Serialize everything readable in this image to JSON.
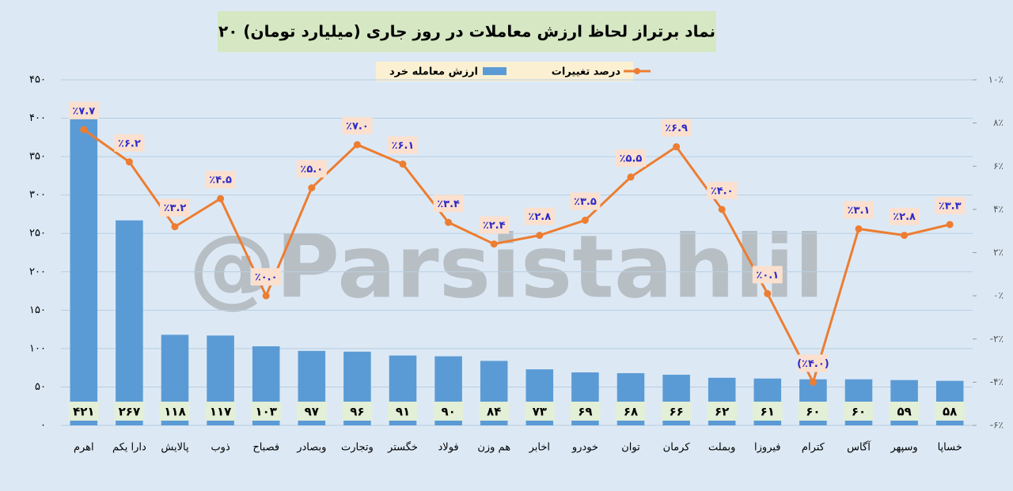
{
  "chart_data": {
    "type": "bar",
    "title": "۲۰ نماد برتراز لحاظ ارزش معاملات در روز جاری (میلیارد تومان)",
    "watermark": "@Parsistahlil",
    "categories": [
      "اهرم",
      "دارا یکم",
      "پالایش",
      "ذوب",
      "فصباح",
      "وبصادر",
      "وتجارت",
      "خگستر",
      "فولاد",
      "هم وزن",
      "اخابر",
      "خودرو",
      "توان",
      "کرمان",
      "وبملت",
      "فیروزا",
      "کترام",
      "آگاس",
      "وسپهر",
      "خساپا"
    ],
    "series": [
      {
        "name": "ارزش معامله خرد",
        "type": "bar",
        "color": "#5b9bd5",
        "values": [
          421,
          267,
          118,
          117,
          103,
          97,
          96,
          91,
          90,
          84,
          73,
          69,
          68,
          66,
          62,
          61,
          60,
          60,
          59,
          58
        ],
        "value_labels": [
          "۴۲۱",
          "۲۶۷",
          "۱۱۸",
          "۱۱۷",
          "۱۰۳",
          "۹۷",
          "۹۶",
          "۹۱",
          "۹۰",
          "۸۴",
          "۷۳",
          "۶۹",
          "۶۸",
          "۶۶",
          "۶۲",
          "۶۱",
          "۶۰",
          "۶۰",
          "۵۹",
          "۵۸"
        ]
      },
      {
        "name": "درصد تغییرات",
        "type": "line",
        "axis": "y2",
        "color": "#ed7d31",
        "values": [
          7.7,
          6.2,
          3.2,
          4.5,
          0.0,
          5.0,
          7.0,
          6.1,
          3.4,
          2.4,
          2.8,
          3.5,
          5.5,
          6.9,
          4.0,
          0.1,
          -4.0,
          3.1,
          2.8,
          3.3
        ],
        "value_labels": [
          "٪۷.۷",
          "٪۶.۲",
          "٪۳.۲",
          "٪۴.۵",
          "٪۰.۰",
          "٪۵.۰",
          "٪۷.۰",
          "٪۶.۱",
          "٪۳.۴",
          "٪۲.۴",
          "٪۲.۸",
          "٪۳.۵",
          "٪۵.۵",
          "٪۶.۹",
          "٪۴.۰",
          "٪۰.۱",
          "(٪۴.۰)",
          "٪۳.۱",
          "٪۲.۸",
          "٪۳.۳"
        ]
      }
    ],
    "ylim": [
      0,
      450
    ],
    "yticks": [
      {
        "value": 0,
        "label": "۰"
      },
      {
        "value": 50,
        "label": "۵۰"
      },
      {
        "value": 100,
        "label": "۱۰۰"
      },
      {
        "value": 150,
        "label": "۱۵۰"
      },
      {
        "value": 200,
        "label": "۲۰۰"
      },
      {
        "value": 250,
        "label": "۲۵۰"
      },
      {
        "value": 300,
        "label": "۳۰۰"
      },
      {
        "value": 350,
        "label": "۳۵۰"
      },
      {
        "value": 400,
        "label": "۴۰۰"
      },
      {
        "value": 450,
        "label": "۴۵۰"
      }
    ],
    "y2lim": [
      -6,
      10
    ],
    "y2ticks": [
      {
        "value": -6,
        "label": "-۶٪"
      },
      {
        "value": -4,
        "label": "-۴٪"
      },
      {
        "value": -2,
        "label": "-۲٪"
      },
      {
        "value": 0,
        "label": "۰٪"
      },
      {
        "value": 2,
        "label": "۲٪"
      },
      {
        "value": 4,
        "label": "۴٪"
      },
      {
        "value": 6,
        "label": "۶٪"
      },
      {
        "value": 8,
        "label": "۸٪"
      },
      {
        "value": 10,
        "label": "۱۰٪"
      }
    ],
    "grid": true
  }
}
